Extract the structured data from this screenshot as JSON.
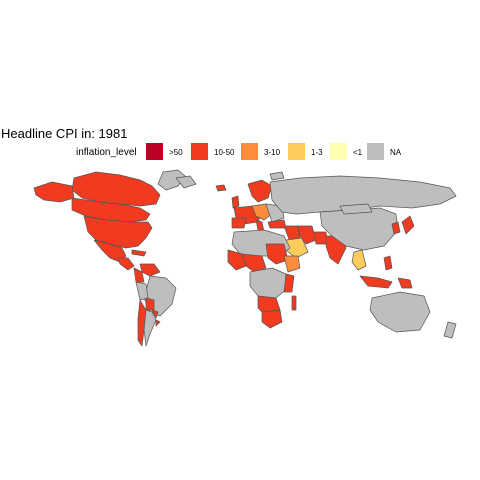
{
  "title": "Headline CPI in: 1981",
  "legend": {
    "label": "inflation_level",
    "items": [
      {
        "label": ">50",
        "color": "#bd0026"
      },
      {
        "label": "10-50",
        "color": "#f03b20"
      },
      {
        "label": "3-10",
        "color": "#fd8d3c"
      },
      {
        "label": "1-3",
        "color": "#fecc5c"
      },
      {
        "label": "<1",
        "color": "#ffffb2"
      },
      {
        "label": "NA",
        "color": "#bebebe"
      }
    ]
  },
  "colors": {
    "border": "#555555",
    "na": "#bebebe",
    "high": "#f03b20",
    "mid": "#fd8d3c",
    "low": "#fecc5c",
    "verylow": "#ffffb2",
    "extreme": "#bd0026"
  }
}
